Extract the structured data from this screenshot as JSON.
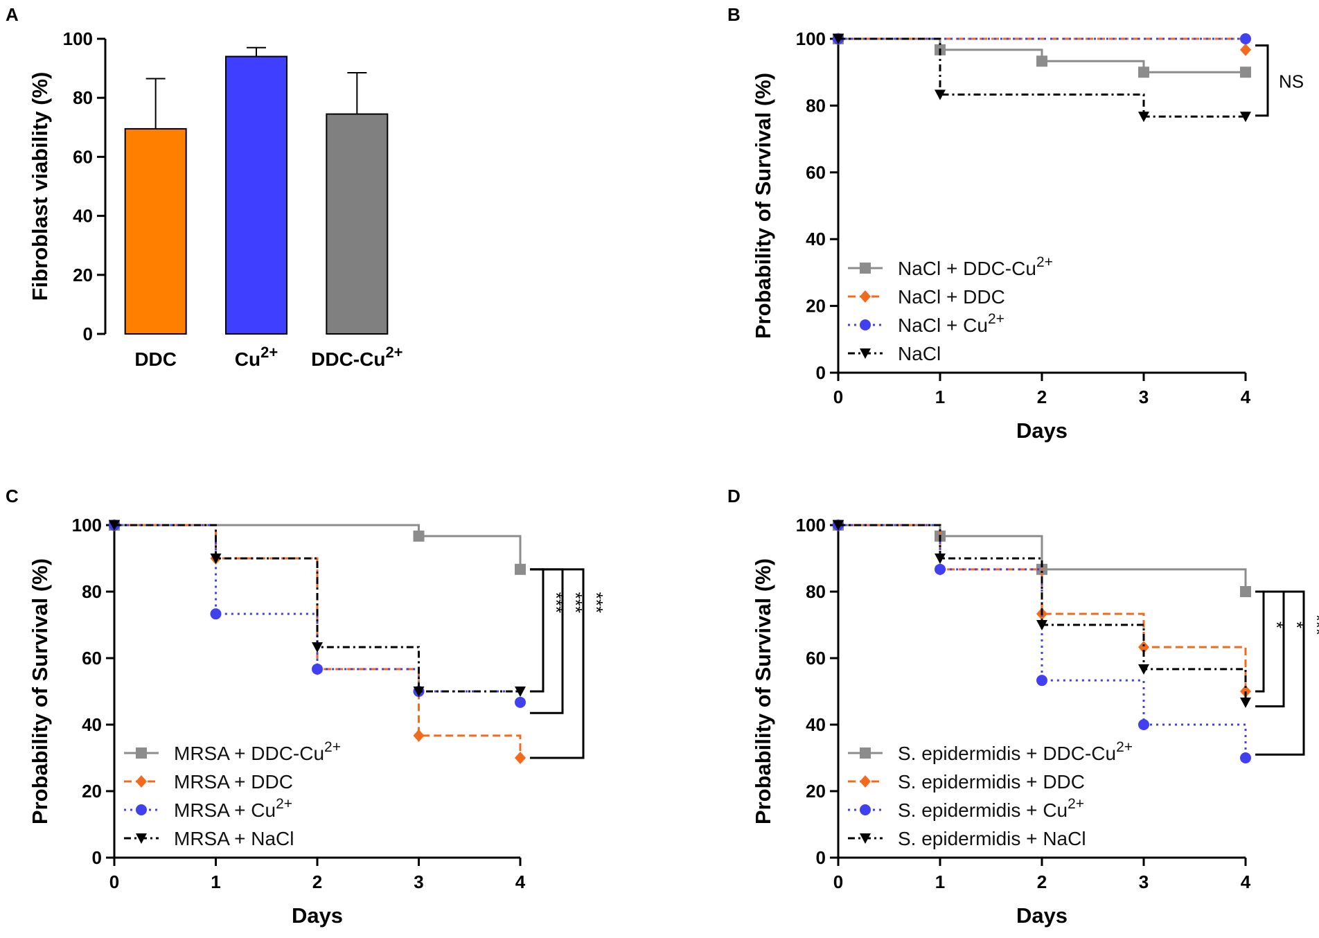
{
  "chart_data": [
    {
      "panel": "A",
      "type": "bar",
      "title": "",
      "xlabel": "",
      "ylabel": "Fibroblast viability (%)",
      "ylim": [
        0,
        100
      ],
      "yticks": [
        "0",
        "20",
        "40",
        "60",
        "80",
        "100"
      ],
      "categories": [
        {
          "base": "DDC",
          "sup": ""
        },
        {
          "base": "Cu",
          "sup": "2+"
        },
        {
          "base": "DDC-Cu",
          "sup": "2+"
        }
      ],
      "values": [
        69.5,
        94,
        74.5
      ],
      "errors": [
        17,
        3,
        14
      ],
      "colors": [
        "#ff7f00",
        "#3f3fff",
        "#808080"
      ]
    },
    {
      "panel": "B",
      "type": "line",
      "subtype": "kaplan-meier",
      "xlabel": "Days",
      "ylabel": "Probability of Survival  (%)",
      "xlim": [
        0,
        4
      ],
      "ylim": [
        0,
        100
      ],
      "xticks": [
        "0",
        "1",
        "2",
        "3",
        "4"
      ],
      "yticks": [
        "0",
        "20",
        "40",
        "60",
        "80",
        "100"
      ],
      "legend_position": "lower-left",
      "series": [
        {
          "base": "NaCl + DDC-Cu",
          "sup": "2+",
          "color": "#8c8c8c",
          "dash": "solid",
          "marker": "square",
          "x": [
            0,
            1,
            2,
            3,
            4
          ],
          "y": [
            100,
            96.7,
            93.3,
            90,
            90
          ]
        },
        {
          "base": "NaCl + DDC",
          "sup": "",
          "color": "#f26b1d",
          "dash": "dashed",
          "marker": "diamond",
          "x": [
            0,
            4
          ],
          "y": [
            100,
            96.7
          ]
        },
        {
          "base": "NaCl + Cu",
          "sup": "2+",
          "color": "#4040ee",
          "dash": "dotted",
          "marker": "circle",
          "x": [
            0,
            4
          ],
          "y": [
            100,
            100
          ]
        },
        {
          "base": "NaCl",
          "sup": "",
          "color": "#000000",
          "dash": "dashdot",
          "marker": "triangle-down",
          "x": [
            0,
            1,
            3,
            4
          ],
          "y": [
            100,
            83.3,
            76.7,
            76.7
          ]
        }
      ],
      "significance": [
        {
          "label": "NS",
          "y_from": 98,
          "y_to": 77,
          "rotated": false
        }
      ]
    },
    {
      "panel": "C",
      "type": "line",
      "subtype": "kaplan-meier",
      "xlabel": "Days",
      "ylabel": "Probability of Survival  (%)",
      "xlim": [
        0,
        4
      ],
      "ylim": [
        0,
        100
      ],
      "xticks": [
        "0",
        "1",
        "2",
        "3",
        "4"
      ],
      "yticks": [
        "0",
        "20",
        "40",
        "60",
        "80",
        "100"
      ],
      "legend_position": "lower-left",
      "series": [
        {
          "base": "MRSA + DDC-Cu",
          "sup": "2+",
          "color": "#8c8c8c",
          "dash": "solid",
          "marker": "square",
          "x": [
            0,
            3,
            4
          ],
          "y": [
            100,
            96.7,
            86.7
          ]
        },
        {
          "base": "MRSA + DDC",
          "sup": "",
          "color": "#f26b1d",
          "dash": "dashed",
          "marker": "diamond",
          "x": [
            0,
            1,
            2,
            3,
            4
          ],
          "y": [
            100,
            90,
            56.7,
            36.7,
            30
          ]
        },
        {
          "base": "MRSA + Cu",
          "sup": "2+",
          "color": "#4040ee",
          "dash": "dotted",
          "marker": "circle",
          "x": [
            0,
            1,
            2,
            3,
            4
          ],
          "y": [
            100,
            73.3,
            56.7,
            50,
            46.7
          ]
        },
        {
          "base": "MRSA + NaCl",
          "sup": "",
          "color": "#000000",
          "dash": "dashdot",
          "marker": "triangle-down",
          "x": [
            0,
            1,
            2,
            3,
            4
          ],
          "y": [
            100,
            90,
            63.3,
            50,
            50
          ]
        }
      ],
      "significance": [
        {
          "label": "***",
          "y_from": 86.7,
          "y_to": 50,
          "rotated": true
        },
        {
          "label": "***",
          "y_from": 86.7,
          "y_to": 43.5,
          "rotated": true
        },
        {
          "label": "***",
          "y_from": 86.7,
          "y_to": 30,
          "rotated": true
        }
      ]
    },
    {
      "panel": "D",
      "type": "line",
      "subtype": "kaplan-meier",
      "xlabel": "Days",
      "ylabel": "Probability of Survival  (%)",
      "xlim": [
        0,
        4
      ],
      "ylim": [
        0,
        100
      ],
      "xticks": [
        "0",
        "1",
        "2",
        "3",
        "4"
      ],
      "yticks": [
        "0",
        "20",
        "40",
        "60",
        "80",
        "100"
      ],
      "legend_position": "lower-left",
      "series": [
        {
          "base": "S. epidermidis + DDC-Cu",
          "sup": "2+",
          "color": "#8c8c8c",
          "dash": "solid",
          "marker": "square",
          "x": [
            0,
            1,
            2,
            4
          ],
          "y": [
            100,
            96.7,
            86.7,
            80
          ]
        },
        {
          "base": "S. epidermidis + DDC",
          "sup": "",
          "color": "#f26b1d",
          "dash": "dashed",
          "marker": "diamond",
          "x": [
            0,
            1,
            2,
            3,
            4
          ],
          "y": [
            100,
            86.7,
            73.3,
            63.3,
            50
          ]
        },
        {
          "base": "S. epidermidis + Cu",
          "sup": "2+",
          "color": "#4040ee",
          "dash": "dotted",
          "marker": "circle",
          "x": [
            0,
            1,
            2,
            3,
            4
          ],
          "y": [
            100,
            86.7,
            53.3,
            40,
            30
          ]
        },
        {
          "base": "S. epidermidis + NaCl",
          "sup": "",
          "color": "#000000",
          "dash": "dashdot",
          "marker": "triangle-down",
          "x": [
            0,
            1,
            2,
            3,
            4
          ],
          "y": [
            100,
            90,
            70,
            56.7,
            46.7
          ]
        }
      ],
      "significance": [
        {
          "label": "*",
          "y_from": 80,
          "y_to": 50,
          "rotated": true
        },
        {
          "label": "*",
          "y_from": 80,
          "y_to": 45.5,
          "rotated": true
        },
        {
          "label": "***",
          "y_from": 80,
          "y_to": 31,
          "rotated": true
        }
      ]
    }
  ]
}
